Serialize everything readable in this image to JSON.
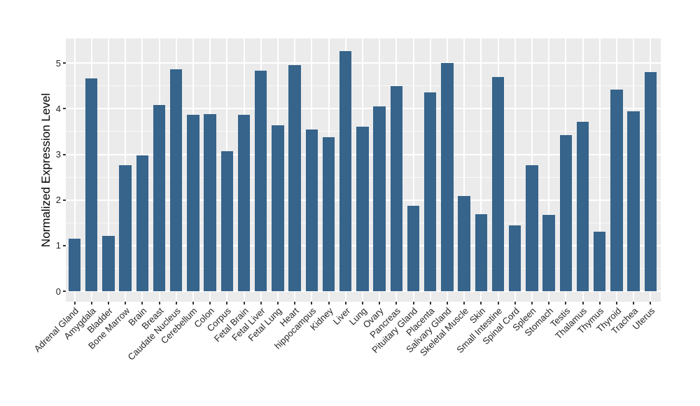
{
  "chart_data": {
    "type": "bar",
    "title": "",
    "xlabel": "",
    "ylabel": "Normalized Expression Level",
    "categories": [
      "Adrenal Gland",
      "Amygdala",
      "Bladder",
      "Bone Marrow",
      "Brain",
      "Breast",
      "Caudate Nucleus",
      "Cerebellum",
      "Colon",
      "Corpus",
      "Fetal Brain",
      "Fetal Liver",
      "Fetal Lung",
      "Heart",
      "hippocampus",
      "Kidney",
      "Liver",
      "Lung",
      "Ovary",
      "Pancreas",
      "Pituitary Gland",
      "Placenta",
      "Salivary Gland",
      "Skeletal Muscle",
      "Skin",
      "Small Intestine",
      "Spinal Cord",
      "Spleen",
      "Stomach",
      "Testis",
      "Thalamus",
      "Thymus",
      "Thyroid",
      "Trachea",
      "Uterus"
    ],
    "values": [
      1.15,
      4.67,
      1.21,
      2.77,
      2.97,
      4.08,
      4.87,
      3.87,
      3.88,
      3.07,
      3.87,
      4.83,
      3.63,
      4.95,
      3.55,
      3.38,
      5.27,
      3.61,
      4.05,
      4.5,
      1.87,
      4.36,
      5.0,
      2.08,
      1.69,
      4.69,
      1.44,
      2.77,
      1.68,
      3.43,
      3.72,
      1.3,
      4.42,
      3.94,
      4.8
    ],
    "y_ticks": [
      0,
      1,
      2,
      3,
      4,
      5
    ],
    "y_minor_ticks": [
      0.5,
      1.5,
      2.5,
      3.5,
      4.5
    ],
    "ylim": [
      -0.23,
      5.54
    ],
    "legend": "none",
    "grid": "white major and minor horizontal lines, white vertical line at each category, on gray panel",
    "colors": {
      "bar": "#36648B",
      "panel_background": "#EBEBEB",
      "gridline": "#FFFFFF",
      "tick_mark": "#333333",
      "tick_label": "#262626",
      "axis_title": "#000000",
      "figure_background": "#FFFFFF"
    }
  }
}
